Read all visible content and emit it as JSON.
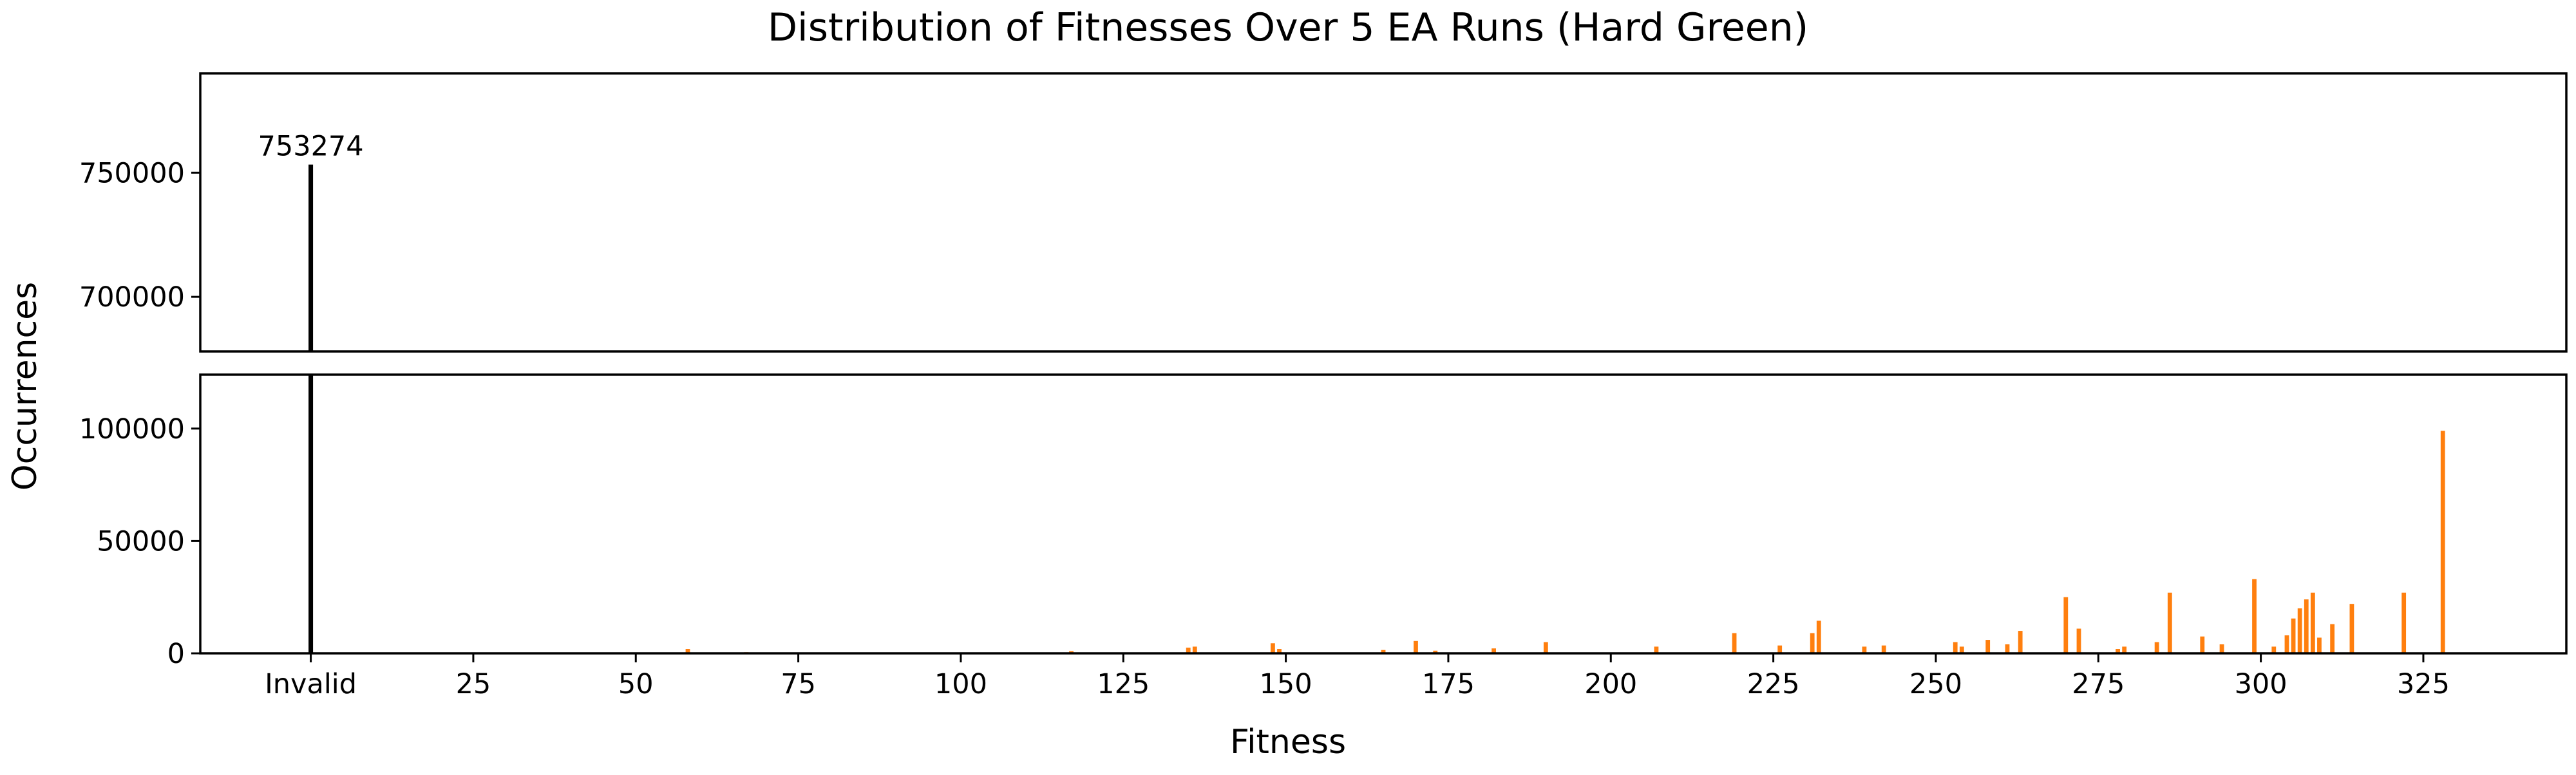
{
  "chart_data": {
    "type": "bar",
    "title": "Distribution of Fitnesses Over 5 EA Runs (Hard Green)",
    "xlabel": "Fitness",
    "ylabel": "Occurrences",
    "broken_y_axis": true,
    "xlim": [
      -17,
      347
    ],
    "x_ticks": [
      0,
      25,
      50,
      75,
      100,
      125,
      150,
      175,
      200,
      225,
      250,
      275,
      300,
      325
    ],
    "x_tick_labels": [
      "Invalid",
      "25",
      "50",
      "75",
      "100",
      "125",
      "150",
      "175",
      "200",
      "225",
      "250",
      "275",
      "300",
      "325"
    ],
    "top_panel": {
      "ylim": [
        678000,
        790000
      ],
      "y_ticks": [
        700000,
        750000
      ],
      "y_tick_labels": [
        "700000",
        "750000"
      ]
    },
    "bottom_panel": {
      "ylim": [
        0,
        124000
      ],
      "y_ticks": [
        0,
        50000,
        100000
      ],
      "y_tick_labels": [
        "0",
        "50000",
        "100000"
      ]
    },
    "invalid_bar": {
      "x": 0,
      "value": 753274,
      "label": "753274",
      "color": "#000000"
    },
    "valid_bar_color": "#ff7f0e",
    "series": [
      {
        "x": [
          58,
          67,
          80,
          117,
          135,
          136,
          148,
          149,
          165,
          170,
          173,
          182,
          190,
          207,
          219,
          226,
          231,
          232,
          239,
          242,
          253,
          254,
          258,
          261,
          263,
          270,
          272,
          278,
          279,
          284,
          286,
          291,
          294,
          299,
          302,
          304,
          305,
          306,
          307,
          308,
          309,
          311,
          314,
          322,
          328
        ],
        "values": [
          2000,
          500,
          300,
          1000,
          2500,
          3000,
          4500,
          2000,
          1500,
          5500,
          1200,
          2200,
          5000,
          3000,
          9000,
          3500,
          9000,
          14500,
          3000,
          3500,
          5000,
          3000,
          6000,
          4000,
          10000,
          25000,
          11000,
          2000,
          3000,
          5000,
          27000,
          7500,
          4000,
          33000,
          3000,
          8000,
          15500,
          20000,
          24000,
          27000,
          7000,
          13000,
          22000,
          27000,
          99000
        ]
      }
    ]
  }
}
